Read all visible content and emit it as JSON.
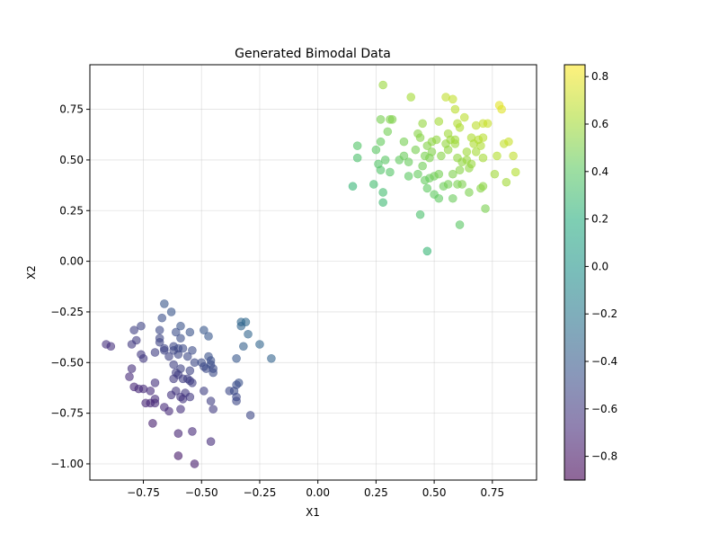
{
  "chart_data": {
    "type": "scatter",
    "title": "Generated Bimodal Data",
    "xlabel": "X1",
    "ylabel": "X2",
    "xlim": [
      -0.98,
      0.94
    ],
    "ylim": [
      -1.08,
      0.97
    ],
    "grid": true,
    "xticks": [
      -0.75,
      -0.5,
      -0.25,
      0.0,
      0.25,
      0.5,
      0.75
    ],
    "xtick_labels": [
      "−0.75",
      "−0.50",
      "−0.25",
      "0.00",
      "0.25",
      "0.50",
      "0.75"
    ],
    "yticks": [
      -1.0,
      -0.75,
      -0.5,
      -0.25,
      0.0,
      0.25,
      0.5,
      0.75
    ],
    "ytick_labels": [
      "−1.00",
      "−0.75",
      "−0.50",
      "−0.25",
      "0.00",
      "0.25",
      "0.50",
      "0.75"
    ],
    "colorbar": {
      "colormap": "viridis",
      "range": [
        -0.9,
        0.85
      ],
      "ticks": [
        -0.8,
        -0.6,
        -0.4,
        -0.2,
        0.0,
        0.2,
        0.4,
        0.6,
        0.8
      ],
      "tick_labels": [
        "−0.8",
        "−0.6",
        "−0.4",
        "−0.2",
        "0.0",
        "0.2",
        "0.4",
        "0.6",
        "0.8"
      ],
      "alpha": 0.6
    },
    "color_by": "mean of X1 and X2",
    "points": [
      [
        0.28,
        0.87
      ],
      [
        0.4,
        0.81
      ],
      [
        0.55,
        0.81
      ],
      [
        0.58,
        0.8
      ],
      [
        0.59,
        0.75
      ],
      [
        0.78,
        0.77
      ],
      [
        0.79,
        0.75
      ],
      [
        0.27,
        0.7
      ],
      [
        0.31,
        0.7
      ],
      [
        0.32,
        0.7
      ],
      [
        0.45,
        0.68
      ],
      [
        0.52,
        0.69
      ],
      [
        0.63,
        0.71
      ],
      [
        0.68,
        0.67
      ],
      [
        0.71,
        0.68
      ],
      [
        0.73,
        0.68
      ],
      [
        0.6,
        0.68
      ],
      [
        0.61,
        0.66
      ],
      [
        0.3,
        0.64
      ],
      [
        0.43,
        0.63
      ],
      [
        0.44,
        0.61
      ],
      [
        0.27,
        0.59
      ],
      [
        0.37,
        0.59
      ],
      [
        0.47,
        0.57
      ],
      [
        0.49,
        0.59
      ],
      [
        0.51,
        0.6
      ],
      [
        0.56,
        0.63
      ],
      [
        0.57,
        0.6
      ],
      [
        0.59,
        0.58
      ],
      [
        0.59,
        0.6
      ],
      [
        0.66,
        0.61
      ],
      [
        0.69,
        0.6
      ],
      [
        0.71,
        0.61
      ],
      [
        0.67,
        0.58
      ],
      [
        0.7,
        0.57
      ],
      [
        0.8,
        0.58
      ],
      [
        0.82,
        0.59
      ],
      [
        0.17,
        0.57
      ],
      [
        0.25,
        0.55
      ],
      [
        0.42,
        0.55
      ],
      [
        0.49,
        0.54
      ],
      [
        0.55,
        0.58
      ],
      [
        0.56,
        0.55
      ],
      [
        0.64,
        0.54
      ],
      [
        0.68,
        0.54
      ],
      [
        0.84,
        0.52
      ],
      [
        0.17,
        0.51
      ],
      [
        0.29,
        0.5
      ],
      [
        0.35,
        0.5
      ],
      [
        0.37,
        0.52
      ],
      [
        0.39,
        0.49
      ],
      [
        0.46,
        0.52
      ],
      [
        0.48,
        0.51
      ],
      [
        0.53,
        0.52
      ],
      [
        0.6,
        0.51
      ],
      [
        0.62,
        0.49
      ],
      [
        0.64,
        0.5
      ],
      [
        0.66,
        0.48
      ],
      [
        0.71,
        0.51
      ],
      [
        0.77,
        0.52
      ],
      [
        0.26,
        0.48
      ],
      [
        0.27,
        0.45
      ],
      [
        0.45,
        0.47
      ],
      [
        0.31,
        0.44
      ],
      [
        0.39,
        0.42
      ],
      [
        0.43,
        0.43
      ],
      [
        0.61,
        0.45
      ],
      [
        0.65,
        0.46
      ],
      [
        0.76,
        0.43
      ],
      [
        0.85,
        0.44
      ],
      [
        0.48,
        0.41
      ],
      [
        0.5,
        0.42
      ],
      [
        0.52,
        0.43
      ],
      [
        0.58,
        0.43
      ],
      [
        0.24,
        0.38
      ],
      [
        0.46,
        0.4
      ],
      [
        0.47,
        0.36
      ],
      [
        0.5,
        0.33
      ],
      [
        0.54,
        0.37
      ],
      [
        0.56,
        0.38
      ],
      [
        0.6,
        0.38
      ],
      [
        0.62,
        0.38
      ],
      [
        0.81,
        0.39
      ],
      [
        0.15,
        0.37
      ],
      [
        0.28,
        0.34
      ],
      [
        0.52,
        0.31
      ],
      [
        0.58,
        0.31
      ],
      [
        0.65,
        0.34
      ],
      [
        0.7,
        0.36
      ],
      [
        0.71,
        0.37
      ],
      [
        0.28,
        0.29
      ],
      [
        0.72,
        0.26
      ],
      [
        0.44,
        0.23
      ],
      [
        0.61,
        0.18
      ],
      [
        0.47,
        0.05
      ],
      [
        -0.66,
        -0.21
      ],
      [
        -0.63,
        -0.25
      ],
      [
        -0.67,
        -0.28
      ],
      [
        -0.59,
        -0.32
      ],
      [
        -0.76,
        -0.32
      ],
      [
        -0.79,
        -0.34
      ],
      [
        -0.68,
        -0.34
      ],
      [
        -0.61,
        -0.35
      ],
      [
        -0.55,
        -0.35
      ],
      [
        -0.49,
        -0.34
      ],
      [
        -0.33,
        -0.3
      ],
      [
        -0.31,
        -0.3
      ],
      [
        -0.33,
        -0.32
      ],
      [
        -0.3,
        -0.36
      ],
      [
        -0.47,
        -0.37
      ],
      [
        -0.59,
        -0.38
      ],
      [
        -0.68,
        -0.38
      ],
      [
        -0.78,
        -0.39
      ],
      [
        -0.91,
        -0.41
      ],
      [
        -0.89,
        -0.42
      ],
      [
        -0.8,
        -0.41
      ],
      [
        -0.68,
        -0.4
      ],
      [
        -0.66,
        -0.43
      ],
      [
        -0.62,
        -0.42
      ],
      [
        -0.6,
        -0.43
      ],
      [
        -0.58,
        -0.43
      ],
      [
        -0.54,
        -0.44
      ],
      [
        -0.32,
        -0.42
      ],
      [
        -0.25,
        -0.41
      ],
      [
        -0.76,
        -0.46
      ],
      [
        -0.75,
        -0.48
      ],
      [
        -0.7,
        -0.45
      ],
      [
        -0.66,
        -0.44
      ],
      [
        -0.64,
        -0.47
      ],
      [
        -0.6,
        -0.46
      ],
      [
        -0.62,
        -0.44
      ],
      [
        -0.56,
        -0.47
      ],
      [
        -0.47,
        -0.47
      ],
      [
        -0.46,
        -0.49
      ],
      [
        -0.35,
        -0.48
      ],
      [
        -0.2,
        -0.48
      ],
      [
        -0.8,
        -0.53
      ],
      [
        -0.62,
        -0.51
      ],
      [
        -0.59,
        -0.53
      ],
      [
        -0.53,
        -0.5
      ],
      [
        -0.5,
        -0.5
      ],
      [
        -0.49,
        -0.52
      ],
      [
        -0.48,
        -0.53
      ],
      [
        -0.46,
        -0.51
      ],
      [
        -0.45,
        -0.53
      ],
      [
        -0.61,
        -0.55
      ],
      [
        -0.55,
        -0.54
      ],
      [
        -0.45,
        -0.55
      ],
      [
        -0.6,
        -0.56
      ],
      [
        -0.81,
        -0.57
      ],
      [
        -0.58,
        -0.58
      ],
      [
        -0.56,
        -0.58
      ],
      [
        -0.55,
        -0.59
      ],
      [
        -0.54,
        -0.6
      ],
      [
        -0.62,
        -0.58
      ],
      [
        -0.7,
        -0.6
      ],
      [
        -0.34,
        -0.6
      ],
      [
        -0.35,
        -0.61
      ],
      [
        -0.79,
        -0.62
      ],
      [
        -0.77,
        -0.63
      ],
      [
        -0.75,
        -0.63
      ],
      [
        -0.72,
        -0.64
      ],
      [
        -0.61,
        -0.64
      ],
      [
        -0.57,
        -0.65
      ],
      [
        -0.49,
        -0.64
      ],
      [
        -0.38,
        -0.64
      ],
      [
        -0.36,
        -0.64
      ],
      [
        -0.63,
        -0.66
      ],
      [
        -0.59,
        -0.67
      ],
      [
        -0.58,
        -0.68
      ],
      [
        -0.55,
        -0.67
      ],
      [
        -0.35,
        -0.67
      ],
      [
        -0.35,
        -0.69
      ],
      [
        -0.46,
        -0.69
      ],
      [
        -0.7,
        -0.68
      ],
      [
        -0.74,
        -0.7
      ],
      [
        -0.72,
        -0.7
      ],
      [
        -0.7,
        -0.7
      ],
      [
        -0.66,
        -0.72
      ],
      [
        -0.64,
        -0.74
      ],
      [
        -0.59,
        -0.73
      ],
      [
        -0.45,
        -0.73
      ],
      [
        -0.29,
        -0.76
      ],
      [
        -0.71,
        -0.8
      ],
      [
        -0.54,
        -0.84
      ],
      [
        -0.6,
        -0.85
      ],
      [
        -0.46,
        -0.89
      ],
      [
        -0.6,
        -0.96
      ],
      [
        -0.53,
        -1.0
      ]
    ]
  }
}
